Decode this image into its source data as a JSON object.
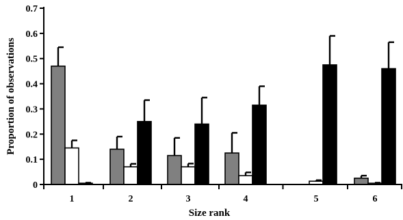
{
  "chart_data": {
    "type": "bar",
    "title": "",
    "xlabel": "Size rank",
    "ylabel": "Proportion of observations",
    "ylim": [
      0,
      0.7
    ],
    "yticks": [
      "0",
      "0.1",
      "0.2",
      "0.3",
      "0.4",
      "0.5",
      "0.6",
      "0.7"
    ],
    "ytick_values": [
      0,
      0.1,
      0.2,
      0.3,
      0.4,
      0.5,
      0.6,
      0.7
    ],
    "categories": [
      "1",
      "2",
      "3",
      "4",
      "5",
      "6"
    ],
    "grid": false,
    "legend": "none",
    "series": [
      {
        "color": "#808080",
        "values": [
          0.47,
          0.14,
          0.115,
          0.125,
          0.0,
          0.025
        ],
        "errors": [
          0.075,
          0.05,
          0.07,
          0.08,
          0.0,
          0.01
        ]
      },
      {
        "color": "#ffffff",
        "values": [
          0.145,
          0.07,
          0.07,
          0.035,
          0.013,
          0.005
        ],
        "errors": [
          0.03,
          0.012,
          0.013,
          0.013,
          0.004,
          0.002
        ]
      },
      {
        "color": "#000000",
        "values": [
          0.005,
          0.25,
          0.24,
          0.315,
          0.475,
          0.46
        ],
        "errors": [
          0.002,
          0.085,
          0.105,
          0.075,
          0.115,
          0.105
        ]
      }
    ]
  }
}
